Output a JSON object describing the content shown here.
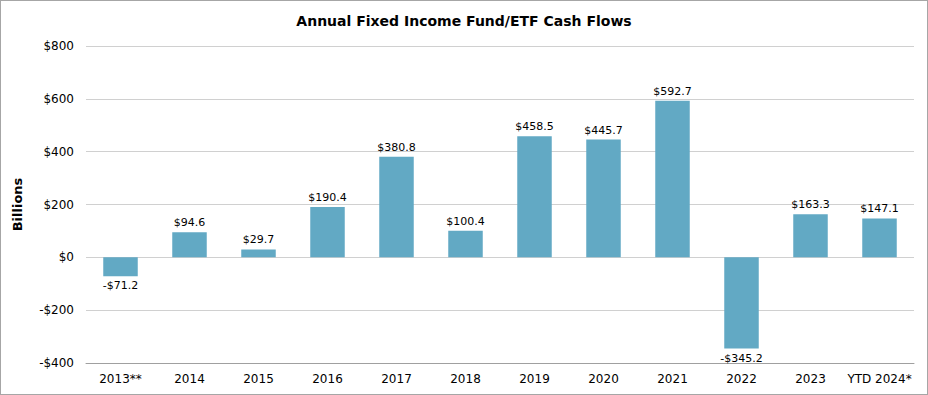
{
  "chart_data": {
    "type": "bar",
    "title": "Annual Fixed Income Fund/ETF Cash Flows",
    "y_label": "Billions",
    "categories": [
      "2013**",
      "2014",
      "2015",
      "2016",
      "2017",
      "2018",
      "2019",
      "2020",
      "2021",
      "2022",
      "2023",
      "YTD 2024*"
    ],
    "values": [
      -71.2,
      94.6,
      29.7,
      190.4,
      380.8,
      100.4,
      458.5,
      445.7,
      592.7,
      -345.2,
      163.3,
      147.1
    ],
    "value_labels": [
      "-$71.2",
      "$94.6",
      "$29.7",
      "$190.4",
      "$380.8",
      "$100.4",
      "$458.5",
      "$445.7",
      "$592.7",
      "-$345.2",
      "$163.3",
      "$147.1"
    ],
    "color": "#62a9c4",
    "ylim": [
      -400,
      800
    ],
    "yticks": [
      {
        "value": -400,
        "label": "-$400"
      },
      {
        "value": -200,
        "label": "-$200"
      },
      {
        "value": 0,
        "label": "$0"
      },
      {
        "value": 200,
        "label": "$200"
      },
      {
        "value": 400,
        "label": "$400"
      },
      {
        "value": 600,
        "label": "$600"
      },
      {
        "value": 800,
        "label": "$800"
      }
    ],
    "grid": true,
    "data_labels": true
  }
}
